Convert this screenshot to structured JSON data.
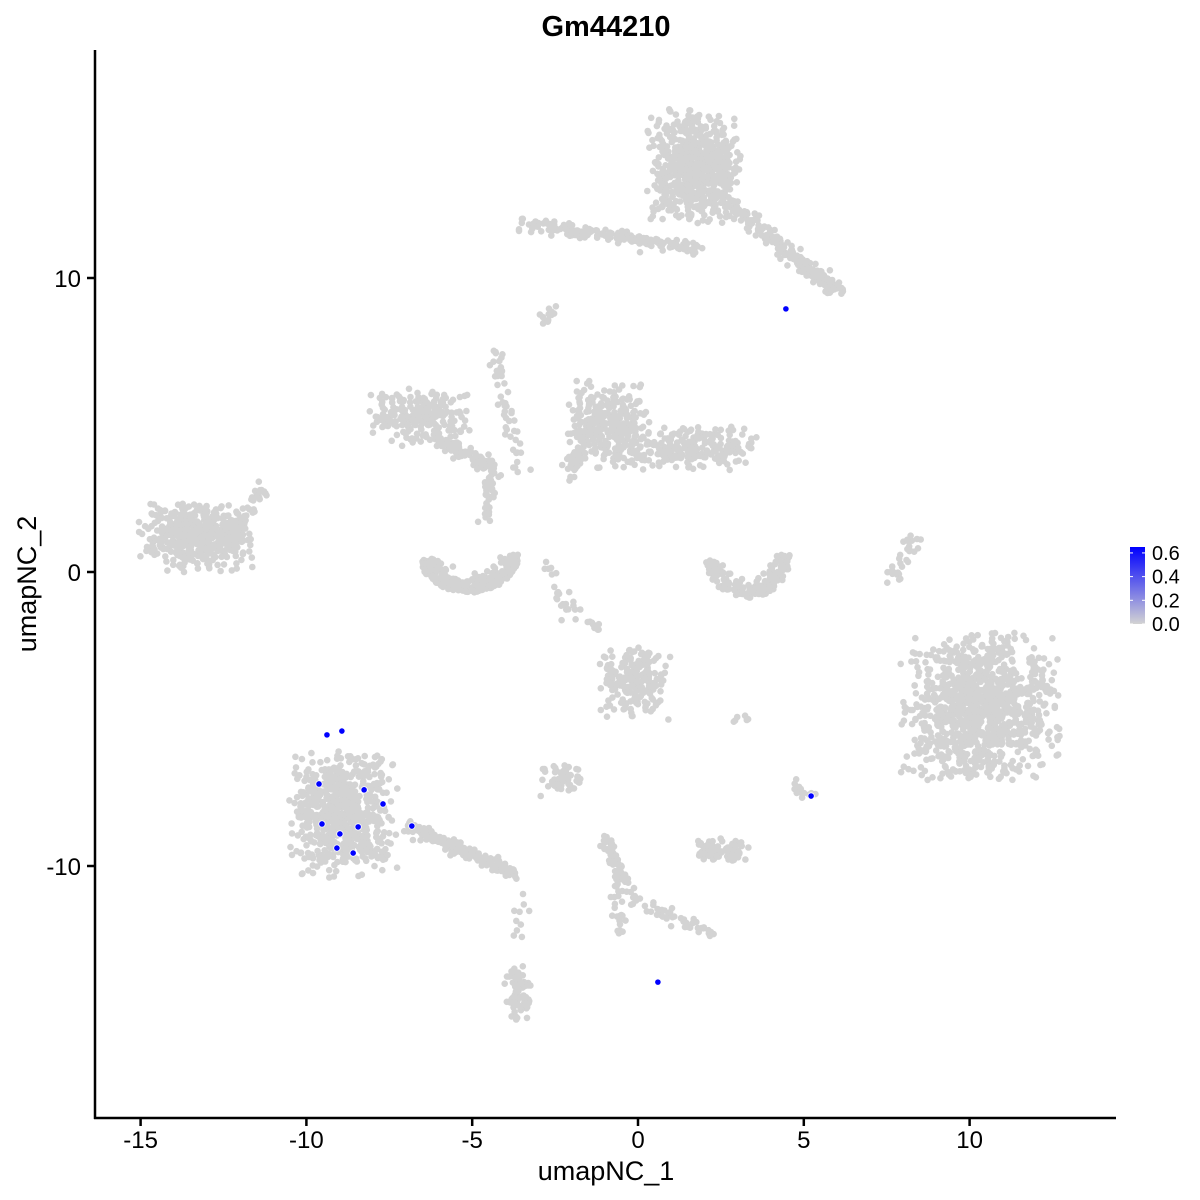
{
  "chart_data": {
    "type": "scatter",
    "title": "Gm44210",
    "xlabel": "umapNC_1",
    "ylabel": "umapNC_2",
    "xlim": [
      -16.4,
      14.4
    ],
    "ylim": [
      -18.4,
      17.9
    ],
    "xticks": [
      -15,
      -10,
      -5,
      0,
      5,
      10
    ],
    "yticks": [
      -10,
      0,
      10
    ],
    "grid": false,
    "legend": {
      "placement": "right",
      "type": "colorbar",
      "ticks": [
        "0.6",
        "0.4",
        "0.2",
        "0.0"
      ],
      "range": [
        0,
        0.65
      ],
      "low_color": "#d3d3d3",
      "high_color": "#0000ff"
    },
    "background_point_color": "#d3d3d3",
    "clusters": [
      {
        "center": [
          1.7,
          13.8
        ],
        "sd": [
          0.65,
          0.9
        ],
        "n": 700
      },
      {
        "center": [
          -13.3,
          1.2
        ],
        "sd": [
          0.8,
          0.55
        ],
        "n": 450
      },
      {
        "center": [
          10.3,
          -4.6
        ],
        "sd": [
          1.1,
          1.15
        ],
        "n": 1100
      },
      {
        "center": [
          -8.9,
          -8.2
        ],
        "sd": [
          0.75,
          1.0
        ],
        "n": 700
      },
      {
        "center": [
          -6.6,
          5.3
        ],
        "sd": [
          0.7,
          0.45
        ],
        "n": 220
      },
      {
        "center": [
          -0.9,
          5.0
        ],
        "sd": [
          0.6,
          0.7
        ],
        "n": 300
      },
      {
        "center": [
          1.5,
          4.2
        ],
        "sd": [
          1.0,
          0.35
        ],
        "n": 250
      },
      {
        "center": [
          -0.1,
          -3.7
        ],
        "sd": [
          0.5,
          0.6
        ],
        "n": 200
      },
      {
        "center": [
          -2.3,
          -7.1
        ],
        "sd": [
          0.3,
          0.25
        ],
        "n": 60
      },
      {
        "center": [
          2.5,
          -9.5
        ],
        "sd": [
          0.4,
          0.2
        ],
        "n": 80
      },
      {
        "center": [
          -3.6,
          -14.4
        ],
        "sd": [
          0.2,
          0.5
        ],
        "n": 80
      }
    ],
    "strands": [
      {
        "from": [
          -3.4,
          11.8
        ],
        "to": [
          1.9,
          11.0
        ],
        "n": 180
      },
      {
        "from": [
          2.8,
          12.5
        ],
        "to": [
          6.0,
          9.5
        ],
        "n": 220
      },
      {
        "from": [
          -6.0,
          4.5
        ],
        "to": [
          -4.4,
          3.5
        ],
        "n": 100
      },
      {
        "from": [
          -4.4,
          7.6
        ],
        "to": [
          -3.6,
          3.5
        ],
        "n": 50
      },
      {
        "from": [
          -4.4,
          3.5
        ],
        "to": [
          -4.6,
          1.8
        ],
        "n": 40
      },
      {
        "from": [
          -7.0,
          -8.6
        ],
        "to": [
          -3.7,
          -10.3
        ],
        "n": 200
      },
      {
        "from": [
          -1.0,
          -9.0
        ],
        "to": [
          -0.2,
          -11.2
        ],
        "n": 70
      },
      {
        "from": [
          0.2,
          -11.3
        ],
        "to": [
          2.4,
          -12.4
        ],
        "n": 40
      },
      {
        "from": [
          -2.1,
          -1.5
        ],
        "to": [
          -2.8,
          0.5
        ],
        "n": 15
      },
      {
        "from": [
          -2.2,
          3.2
        ],
        "to": [
          -1.1,
          5.5
        ],
        "n": 60
      },
      {
        "from": [
          -12.3,
          0.8
        ],
        "to": [
          -11.4,
          2.8
        ],
        "n": 50
      },
      {
        "from": [
          7.7,
          -0.3
        ],
        "to": [
          8.2,
          1.1
        ],
        "n": 30
      },
      {
        "from": [
          -2.5,
          -0.8
        ],
        "to": [
          -1.1,
          -2.0
        ],
        "n": 20
      },
      {
        "from": [
          -3.5,
          -11.0
        ],
        "to": [
          -3.6,
          -12.5
        ],
        "n": 10
      },
      {
        "from": [
          -2.8,
          8.6
        ],
        "to": [
          -2.5,
          8.9
        ],
        "n": 12
      },
      {
        "from": [
          3.1,
          -5.1
        ],
        "to": [
          3.0,
          -5.0
        ],
        "n": 6
      },
      {
        "from": [
          4.8,
          -7.2
        ],
        "to": [
          5.2,
          -7.6
        ],
        "n": 15
      },
      {
        "from": [
          -0.8,
          -11.0
        ],
        "to": [
          -0.4,
          -12.4
        ],
        "n": 20
      }
    ],
    "arcs": [
      {
        "center": [
          -5.1,
          0.6
        ],
        "radius": [
          1.5,
          1.3
        ],
        "n": 330
      },
      {
        "center": [
          3.3,
          0.6
        ],
        "radius": [
          1.3,
          1.5
        ],
        "n": 170
      }
    ],
    "highlighted_points": [
      {
        "x": -9.38,
        "y": -5.54,
        "value": 0.65
      },
      {
        "x": -8.93,
        "y": -5.41,
        "value": 0.65
      },
      {
        "x": -9.62,
        "y": -7.21,
        "value": 0.65
      },
      {
        "x": -8.26,
        "y": -7.41,
        "value": 0.65
      },
      {
        "x": -7.69,
        "y": -7.89,
        "value": 0.65
      },
      {
        "x": -6.82,
        "y": -8.64,
        "value": 0.65
      },
      {
        "x": -9.53,
        "y": -8.57,
        "value": 0.65
      },
      {
        "x": -8.99,
        "y": -8.91,
        "value": 0.65
      },
      {
        "x": -8.44,
        "y": -8.67,
        "value": 0.65
      },
      {
        "x": -9.08,
        "y": -9.39,
        "value": 0.65
      },
      {
        "x": -8.59,
        "y": -9.56,
        "value": 0.65
      },
      {
        "x": 4.46,
        "y": 8.95,
        "value": 0.65
      },
      {
        "x": 5.22,
        "y": -7.62,
        "value": 0.65
      },
      {
        "x": 0.6,
        "y": -13.95,
        "value": 0.65
      }
    ]
  }
}
